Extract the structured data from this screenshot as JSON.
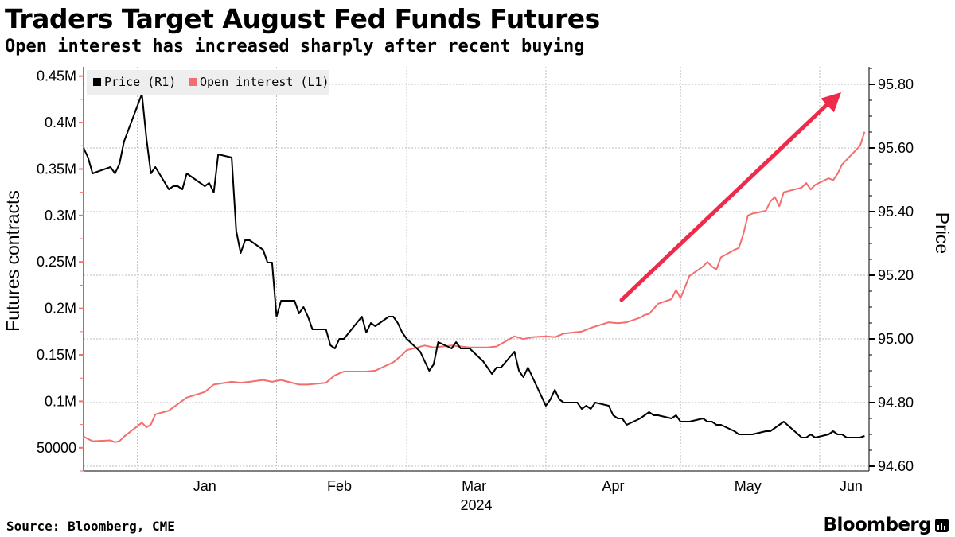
{
  "header": {
    "title": "Traders Target August Fed Funds Futures",
    "subtitle": "Open interest has increased sharply after recent buying"
  },
  "footer": {
    "source": "Source: Bloomberg, CME",
    "brand": "Bloomberg",
    "brand_icon": "bloomberg-terminal-icon"
  },
  "colors": {
    "price": "#000000",
    "open_interest": "#f56e6e",
    "arrow": "#ef2b4c",
    "grid": "#bbbbbb",
    "legend_bg": "#eeeeee",
    "left_tick": "#f56e6e"
  },
  "chart_data": {
    "type": "line",
    "title": "Traders Target August Fed Funds Futures",
    "subtitle": "Open interest has increased sharply after recent buying",
    "xlabel": "2024",
    "x_ticks": [
      "Jan",
      "Feb",
      "Mar",
      "Apr",
      "May",
      "Jun"
    ],
    "year_label": "2024",
    "x_range": [
      "2023-12-20",
      "2024-06-12"
    ],
    "y_left": {
      "label": "Futures contracts",
      "range": [
        25000,
        460000
      ],
      "ticks": [
        50000,
        100000,
        150000,
        200000,
        250000,
        300000,
        350000,
        400000,
        450000
      ],
      "tick_labels": [
        "50000",
        "0.1M",
        "0.15M",
        "0.2M",
        "0.25M",
        "0.3M",
        "0.35M",
        "0.4M",
        "0.45M"
      ]
    },
    "y_right": {
      "label": "Price",
      "range": [
        94.585,
        95.855
      ],
      "ticks": [
        94.6,
        94.8,
        95.0,
        95.2,
        95.4,
        95.6,
        95.8
      ],
      "tick_labels": [
        "94.60",
        "94.80",
        "95.00",
        "95.20",
        "95.40",
        "95.60",
        "95.80"
      ]
    },
    "grid": true,
    "legend_position": "top-left",
    "legend": [
      "Price (R1)",
      "Open interest (L1)"
    ],
    "annotation": "upward arrow from mid-April to June highlighting rising open interest",
    "series": [
      {
        "name": "Price (R1)",
        "axis": "right",
        "x": [
          "2023-12-20",
          "2023-12-21",
          "2023-12-22",
          "2023-12-26",
          "2023-12-27",
          "2023-12-28",
          "2023-12-29",
          "2024-01-02",
          "2024-01-03",
          "2024-01-04",
          "2024-01-05",
          "2024-01-08",
          "2024-01-09",
          "2024-01-10",
          "2024-01-11",
          "2024-01-12",
          "2024-01-16",
          "2024-01-17",
          "2024-01-18",
          "2024-01-19",
          "2024-01-22",
          "2024-01-23",
          "2024-01-24",
          "2024-01-25",
          "2024-01-26",
          "2024-01-29",
          "2024-01-30",
          "2024-01-31",
          "2024-02-01",
          "2024-02-02",
          "2024-02-05",
          "2024-02-06",
          "2024-02-07",
          "2024-02-08",
          "2024-02-09",
          "2024-02-12",
          "2024-02-13",
          "2024-02-14",
          "2024-02-15",
          "2024-02-16",
          "2024-02-20",
          "2024-02-21",
          "2024-02-22",
          "2024-02-23",
          "2024-02-26",
          "2024-02-27",
          "2024-02-28",
          "2024-02-29",
          "2024-03-01",
          "2024-03-04",
          "2024-03-05",
          "2024-03-06",
          "2024-03-07",
          "2024-03-08",
          "2024-03-11",
          "2024-03-12",
          "2024-03-13",
          "2024-03-14",
          "2024-03-15",
          "2024-03-18",
          "2024-03-19",
          "2024-03-20",
          "2024-03-21",
          "2024-03-22",
          "2024-03-25",
          "2024-03-26",
          "2024-03-27",
          "2024-03-28",
          "2024-04-01",
          "2024-04-02",
          "2024-04-03",
          "2024-04-04",
          "2024-04-05",
          "2024-04-08",
          "2024-04-09",
          "2024-04-10",
          "2024-04-11",
          "2024-04-12",
          "2024-04-15",
          "2024-04-16",
          "2024-04-17",
          "2024-04-18",
          "2024-04-19",
          "2024-04-22",
          "2024-04-23",
          "2024-04-24",
          "2024-04-25",
          "2024-04-26",
          "2024-04-29",
          "2024-04-30",
          "2024-05-01",
          "2024-05-02",
          "2024-05-03",
          "2024-05-06",
          "2024-05-07",
          "2024-05-08",
          "2024-05-09",
          "2024-05-10",
          "2024-05-13",
          "2024-05-14",
          "2024-05-15",
          "2024-05-16",
          "2024-05-17",
          "2024-05-20",
          "2024-05-21",
          "2024-05-22",
          "2024-05-23",
          "2024-05-24",
          "2024-05-28",
          "2024-05-29",
          "2024-05-30",
          "2024-05-31",
          "2024-06-03",
          "2024-06-04",
          "2024-06-05",
          "2024-06-06",
          "2024-06-07",
          "2024-06-10",
          "2024-06-11"
        ],
        "values": [
          95.6,
          95.57,
          95.52,
          95.54,
          95.52,
          95.55,
          95.62,
          95.77,
          95.63,
          95.52,
          95.54,
          95.47,
          95.48,
          95.48,
          95.47,
          95.52,
          95.48,
          95.49,
          95.46,
          95.58,
          95.57,
          95.34,
          95.27,
          95.31,
          95.31,
          95.28,
          95.24,
          95.24,
          95.07,
          95.12,
          95.12,
          95.08,
          95.1,
          95.07,
          95.03,
          95.03,
          94.98,
          94.97,
          95.0,
          95.0,
          95.07,
          95.02,
          95.05,
          95.04,
          95.07,
          95.07,
          95.05,
          95.02,
          95.0,
          94.96,
          94.93,
          94.9,
          94.92,
          94.99,
          94.97,
          94.99,
          94.97,
          94.97,
          94.97,
          94.93,
          94.91,
          94.89,
          94.91,
          94.91,
          94.96,
          94.9,
          94.88,
          94.91,
          94.79,
          94.81,
          94.84,
          94.81,
          94.8,
          94.8,
          94.78,
          94.79,
          94.78,
          94.8,
          94.79,
          94.76,
          94.75,
          94.75,
          94.73,
          94.75,
          94.76,
          94.77,
          94.76,
          94.76,
          94.75,
          94.76,
          94.74,
          94.74,
          94.74,
          94.75,
          94.74,
          94.74,
          94.73,
          94.73,
          94.71,
          94.7,
          94.7,
          94.7,
          94.7,
          94.71,
          94.71,
          94.72,
          94.73,
          94.74,
          94.69,
          94.69,
          94.7,
          94.69,
          94.7,
          94.71,
          94.7,
          94.7,
          94.69,
          94.69,
          94.695
        ]
      },
      {
        "name": "Open interest (L1)",
        "axis": "left",
        "x": [
          "2023-12-20",
          "2023-12-22",
          "2023-12-26",
          "2023-12-27",
          "2023-12-28",
          "2023-12-29",
          "2024-01-02",
          "2024-01-03",
          "2024-01-04",
          "2024-01-05",
          "2024-01-08",
          "2024-01-10",
          "2024-01-12",
          "2024-01-16",
          "2024-01-18",
          "2024-01-22",
          "2024-01-24",
          "2024-01-26",
          "2024-01-29",
          "2024-01-31",
          "2024-02-02",
          "2024-02-06",
          "2024-02-08",
          "2024-02-12",
          "2024-02-14",
          "2024-02-16",
          "2024-02-21",
          "2024-02-23",
          "2024-02-27",
          "2024-02-29",
          "2024-03-01",
          "2024-03-05",
          "2024-03-07",
          "2024-03-11",
          "2024-03-13",
          "2024-03-15",
          "2024-03-19",
          "2024-03-21",
          "2024-03-25",
          "2024-03-27",
          "2024-03-29",
          "2024-04-01",
          "2024-04-03",
          "2024-04-05",
          "2024-04-09",
          "2024-04-11",
          "2024-04-15",
          "2024-04-17",
          "2024-04-19",
          "2024-04-22",
          "2024-04-23",
          "2024-04-24",
          "2024-04-26",
          "2024-04-29",
          "2024-04-30",
          "2024-05-01",
          "2024-05-03",
          "2024-05-06",
          "2024-05-07",
          "2024-05-08",
          "2024-05-09",
          "2024-05-10",
          "2024-05-13",
          "2024-05-14",
          "2024-05-15",
          "2024-05-16",
          "2024-05-17",
          "2024-05-20",
          "2024-05-21",
          "2024-05-22",
          "2024-05-23",
          "2024-05-24",
          "2024-05-28",
          "2024-05-29",
          "2024-05-30",
          "2024-05-31",
          "2024-06-03",
          "2024-06-04",
          "2024-06-05",
          "2024-06-06",
          "2024-06-07",
          "2024-06-10",
          "2024-06-11"
        ],
        "values": [
          62000,
          57000,
          58000,
          56000,
          57000,
          62000,
          77000,
          72000,
          75000,
          86000,
          90000,
          97000,
          104000,
          110000,
          118000,
          121000,
          120000,
          121000,
          123000,
          121000,
          123000,
          118000,
          118000,
          120000,
          128000,
          132000,
          132000,
          133000,
          142000,
          150000,
          155000,
          160000,
          158000,
          160000,
          159000,
          158000,
          158000,
          159000,
          170000,
          167000,
          169000,
          170000,
          169000,
          173000,
          175000,
          179000,
          185000,
          184000,
          185000,
          190000,
          193000,
          194000,
          205000,
          210000,
          220000,
          211000,
          235000,
          245000,
          250000,
          245000,
          242000,
          255000,
          263000,
          265000,
          280000,
          300000,
          302000,
          305000,
          315000,
          320000,
          310000,
          325000,
          330000,
          335000,
          328000,
          333000,
          340000,
          338000,
          345000,
          355000,
          360000,
          375000,
          390000
        ]
      }
    ]
  }
}
